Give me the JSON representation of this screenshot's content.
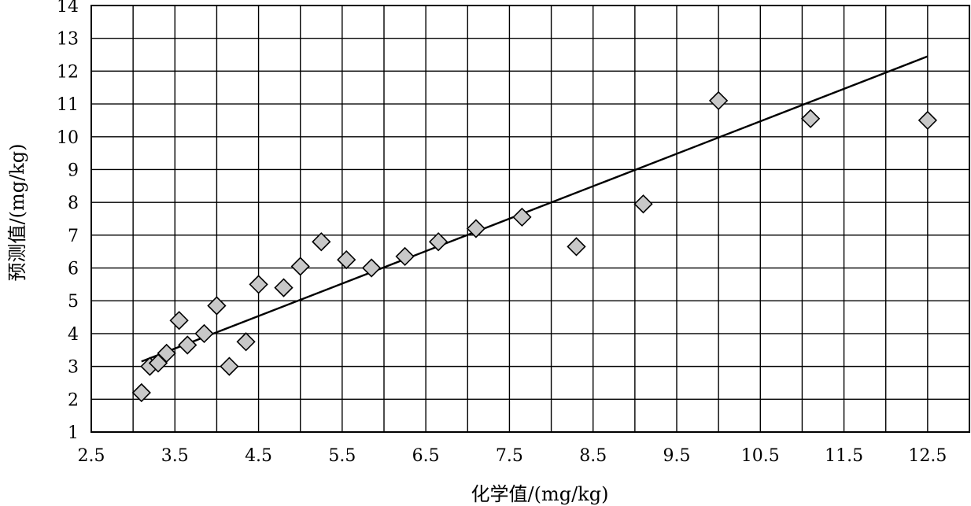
{
  "chart_data": {
    "type": "scatter",
    "title": "",
    "xlabel": "化学值/(mg/kg)",
    "ylabel": "预测值/(mg/kg)",
    "xlim": [
      2.5,
      13.0
    ],
    "ylim": [
      1,
      14
    ],
    "x_ticks": [
      2.5,
      3.5,
      4.5,
      5.5,
      6.5,
      7.5,
      8.5,
      9.5,
      10.5,
      11.5,
      12.5
    ],
    "x_tick_labels": [
      "2.5",
      "3.5",
      "4.5",
      "5.5",
      "6.5",
      "7.5",
      "8.5",
      "9.5",
      "10.5",
      "11.5",
      "12.5"
    ],
    "x_grid_step": 0.5,
    "y_ticks": [
      1,
      2,
      3,
      4,
      5,
      6,
      7,
      8,
      9,
      10,
      11,
      12,
      13,
      14
    ],
    "y_tick_labels": [
      "1",
      "2",
      "3",
      "4",
      "5",
      "6",
      "7",
      "8",
      "9",
      "10",
      "11",
      "12",
      "13",
      "14"
    ],
    "grid": true,
    "marker": "diamond",
    "marker_fill": "#c8c8c8",
    "series": [
      {
        "points": [
          [
            3.1,
            2.2
          ],
          [
            3.2,
            3.0
          ],
          [
            3.3,
            3.1
          ],
          [
            3.4,
            3.4
          ],
          [
            3.55,
            4.4
          ],
          [
            3.65,
            3.65
          ],
          [
            3.85,
            4.0
          ],
          [
            4.0,
            4.85
          ],
          [
            4.15,
            3.0
          ],
          [
            4.35,
            3.75
          ],
          [
            4.5,
            5.5
          ],
          [
            4.8,
            5.4
          ],
          [
            5.0,
            6.05
          ],
          [
            5.25,
            6.8
          ],
          [
            5.55,
            6.25
          ],
          [
            5.85,
            6.0
          ],
          [
            6.25,
            6.35
          ],
          [
            6.65,
            6.8
          ],
          [
            7.1,
            7.2
          ],
          [
            7.65,
            7.55
          ],
          [
            8.3,
            6.65
          ],
          [
            9.1,
            7.95
          ],
          [
            10.0,
            11.1
          ],
          [
            11.1,
            10.55
          ],
          [
            12.5,
            10.5
          ]
        ]
      }
    ],
    "fit_line": {
      "x": [
        3.1,
        12.5
      ],
      "y": [
        3.15,
        12.45
      ]
    }
  }
}
